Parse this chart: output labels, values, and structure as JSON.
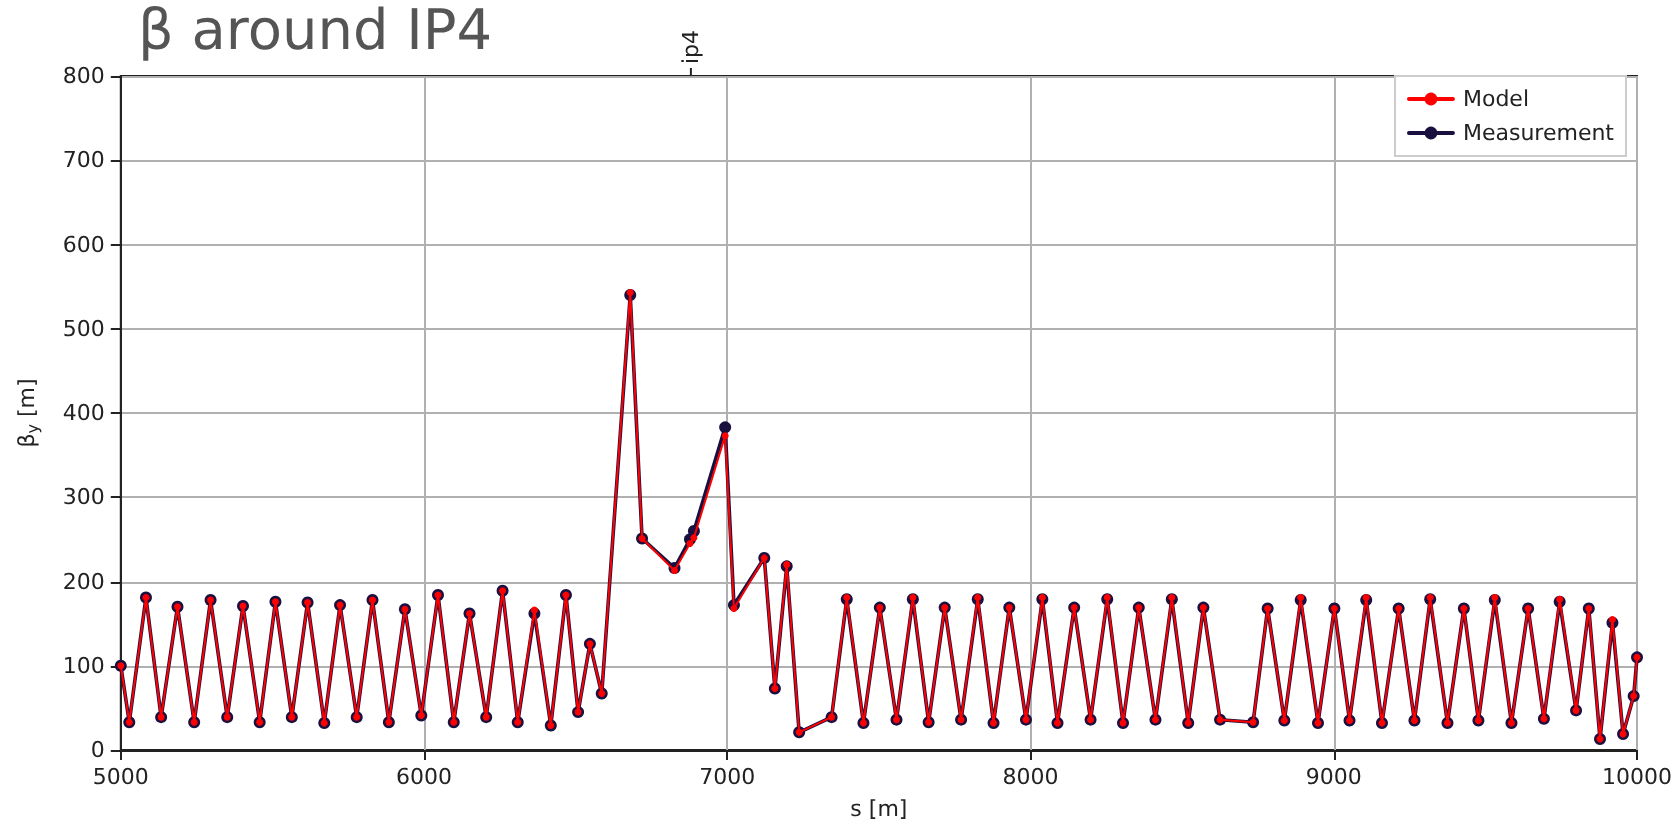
{
  "chart_data": {
    "type": "line",
    "title": "β around IP4",
    "xlabel": "s [m]",
    "ylabel": "β$_{y}$ [m]",
    "x": [
      5000,
      5028,
      5083,
      5133,
      5187,
      5242,
      5296,
      5351,
      5403,
      5458,
      5510,
      5564,
      5616,
      5671,
      5723,
      5778,
      5830,
      5884,
      5937,
      5991,
      6046,
      6098,
      6150,
      6205,
      6259,
      6309,
      6364,
      6418,
      6468,
      6508,
      6547,
      6586,
      6680,
      6719,
      6826,
      6877,
      6890,
      6993,
      7022,
      7122,
      7157,
      7196,
      7237,
      7344,
      7394,
      7449,
      7503,
      7558,
      7612,
      7664,
      7717,
      7771,
      7826,
      7878,
      7930,
      7985,
      8039,
      8089,
      8144,
      8198,
      8253,
      8305,
      8357,
      8412,
      8466,
      8520,
      8570,
      8625,
      8734,
      8782,
      8837,
      8891,
      8948,
      9002,
      9052,
      9107,
      9159,
      9214,
      9266,
      9318,
      9375,
      9429,
      9477,
      9531,
      9586,
      9641,
      9693,
      9745,
      9799,
      9841,
      9878,
      9919,
      9954,
      9989,
      10000
    ],
    "series": [
      {
        "name": "Model",
        "color": "#ff0000",
        "values": [
          100,
          33,
          181,
          39,
          170,
          33,
          178,
          39,
          171,
          33,
          176,
          39,
          175,
          32,
          172,
          39,
          178,
          33,
          167,
          41,
          184,
          33,
          162,
          39,
          189,
          33,
          166,
          29,
          184,
          45,
          126,
          67,
          543,
          251,
          213,
          245,
          252,
          373,
          168,
          228,
          73,
          220,
          21,
          39,
          181,
          32,
          169,
          36,
          181,
          33,
          169,
          36,
          181,
          32,
          169,
          36,
          181,
          32,
          169,
          36,
          181,
          32,
          169,
          36,
          181,
          32,
          169,
          36,
          33,
          168,
          35,
          181,
          32,
          168,
          35,
          181,
          32,
          168,
          35,
          181,
          32,
          168,
          35,
          181,
          32,
          168,
          37,
          179,
          47,
          168,
          13,
          155,
          19,
          64,
          110
        ]
      },
      {
        "name": "Measurement",
        "color": "#1a1040",
        "values": [
          100,
          33,
          181,
          39,
          170,
          33,
          178,
          39,
          171,
          33,
          176,
          39,
          175,
          32,
          172,
          39,
          178,
          33,
          167,
          41,
          184,
          33,
          162,
          39,
          189,
          33,
          162,
          29,
          184,
          45,
          126,
          67,
          540,
          251,
          216,
          250,
          260,
          383,
          172,
          228,
          73,
          218,
          21,
          39,
          179,
          32,
          169,
          36,
          179,
          33,
          169,
          36,
          179,
          32,
          169,
          36,
          179,
          32,
          169,
          36,
          179,
          32,
          169,
          36,
          179,
          32,
          169,
          36,
          33,
          168,
          35,
          178,
          32,
          168,
          35,
          178,
          32,
          168,
          35,
          179,
          32,
          168,
          35,
          178,
          32,
          168,
          37,
          176,
          47,
          168,
          13,
          151,
          19,
          64,
          110
        ]
      }
    ],
    "xlim": [
      5000,
      10000
    ],
    "xticks": [
      5000,
      6000,
      7000,
      8000,
      9000,
      10000
    ],
    "ylim": [
      0,
      800
    ],
    "yticks": [
      0,
      100,
      200,
      300,
      400,
      500,
      600,
      700,
      800
    ],
    "annotations": [
      {
        "text": "ip4",
        "x": 6880
      }
    ],
    "grid": true,
    "legend": "top right",
    "marker": "circle",
    "line_style": "solid"
  }
}
